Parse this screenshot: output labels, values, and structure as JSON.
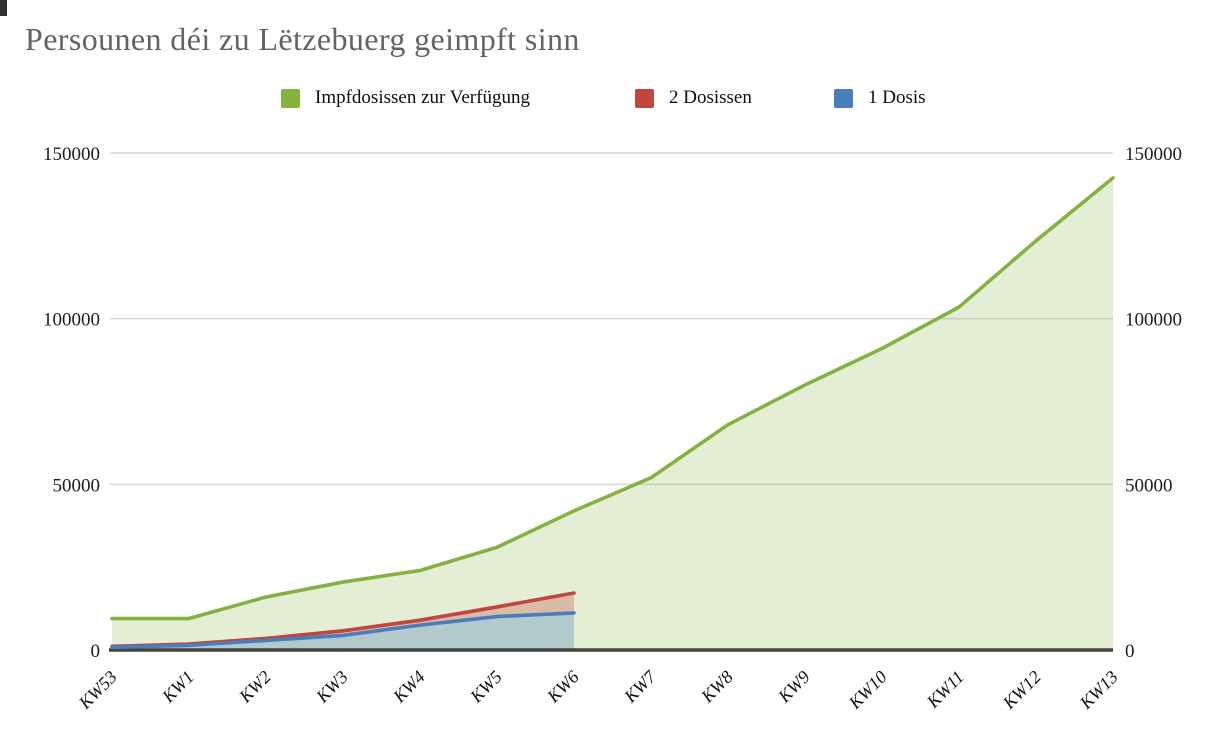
{
  "title": "Persounen déi zu Lëtzebuerg geimpft sinn",
  "legend": [
    {
      "label": "Impfdosissen zur Verfügung",
      "color": "#84b23f"
    },
    {
      "label": "2 Dosissen",
      "color": "#c1463e"
    },
    {
      "label": "1 Dosis",
      "color": "#4a7ebb"
    }
  ],
  "chart_data": {
    "type": "area",
    "title": "Persounen déi zu Lëtzebuerg geimpft sinn",
    "categories": [
      "KW53",
      "KW1",
      "KW2",
      "KW3",
      "KW4",
      "KW5",
      "KW6",
      "KW7",
      "KW8",
      "KW9",
      "KW10",
      "KW11",
      "KW12",
      "KW13"
    ],
    "series": [
      {
        "name": "Impfdosissen zur Verfügung",
        "color": "#84b23f",
        "fill_opacity": 0.22,
        "values": [
          9500,
          9500,
          16000,
          20500,
          24000,
          31000,
          42000,
          52000,
          68000,
          80000,
          91000,
          103500,
          123500,
          142500
        ]
      },
      {
        "name": "2 Dosissen",
        "color": "#c1463e",
        "fill_opacity": 0.3,
        "values": [
          1100,
          1800,
          3500,
          5800,
          9000,
          13000,
          17200
        ]
      },
      {
        "name": "1 Dosis",
        "color": "#4a7ebb",
        "fill_opacity": 0.32,
        "values": [
          800,
          1400,
          2900,
          4400,
          7500,
          10100,
          11200
        ]
      }
    ],
    "ylim": [
      0,
      150000
    ],
    "yticks": [
      0,
      50000,
      100000,
      150000
    ],
    "grid": true,
    "dual_y_axis": true,
    "legend_position": "top",
    "xlabel": "",
    "ylabel": "",
    "note": "'2 Dosissen' and '1 Dosis' are stacked cumulative line positions that end at KW6; the '2 Dosissen' line sits above the '1 Dosis' line."
  },
  "colors": {
    "background": "#ffffff",
    "title": "#636363",
    "grid": "#d8d8d8",
    "axis_baseline": "#44443c",
    "tick_label": "#1c1c1c"
  }
}
